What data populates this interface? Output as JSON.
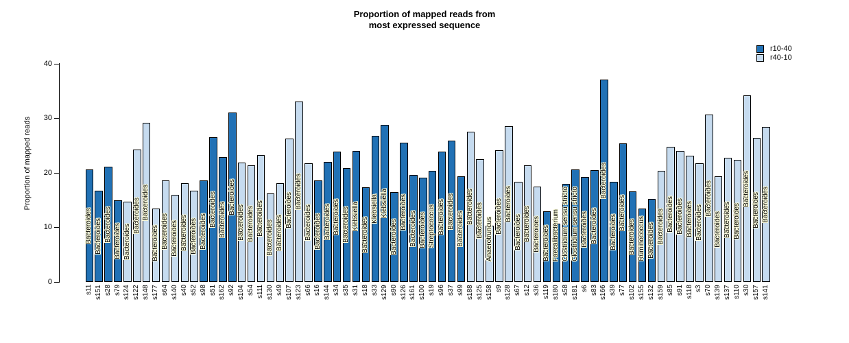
{
  "chart_data": {
    "type": "bar",
    "title": "Proportion of mapped reads from most expressed sequence",
    "title_lines": [
      "Proportion of mapped reads from",
      "most expressed sequence"
    ],
    "ylabel": "Proportion of mapped reads",
    "xlabel": "",
    "ylim": [
      0,
      40
    ],
    "yticks": [
      0,
      10,
      20,
      30,
      40
    ],
    "grid": false,
    "bar_outline": "#000000",
    "label_halo": "#FFFFDE",
    "legend": {
      "position": "top-right",
      "entries": [
        {
          "label": "r10-40",
          "color": "#2171B5"
        },
        {
          "label": "r40-10",
          "color": "#C6DBEF"
        }
      ]
    },
    "bars": [
      {
        "sample": "s11",
        "genus": "Bacteroides",
        "value": 20.6,
        "group": "r10-40"
      },
      {
        "sample": "s151",
        "genus": "Bacteroides",
        "value": 16.7,
        "group": "r10-40"
      },
      {
        "sample": "s28",
        "genus": "Bacteroides",
        "value": 21.1,
        "group": "r10-40"
      },
      {
        "sample": "s79",
        "genus": "Bacteroides",
        "value": 15.0,
        "group": "r10-40"
      },
      {
        "sample": "s124",
        "genus": "Bacteroides",
        "value": 14.7,
        "group": "r40-10"
      },
      {
        "sample": "s122",
        "genus": "Bacteroides",
        "value": 24.3,
        "group": "r40-10"
      },
      {
        "sample": "s148",
        "genus": "Bacteroides",
        "value": 29.1,
        "group": "r40-10"
      },
      {
        "sample": "s177",
        "genus": "Bacteroides",
        "value": 13.4,
        "group": "r40-10"
      },
      {
        "sample": "s64",
        "genus": "Bacteroides",
        "value": 18.6,
        "group": "r40-10"
      },
      {
        "sample": "s140",
        "genus": "Bacteroides",
        "value": 15.9,
        "group": "r40-10"
      },
      {
        "sample": "s40",
        "genus": "Bacteroides",
        "value": 18.1,
        "group": "r40-10"
      },
      {
        "sample": "s52",
        "genus": "Bacteroides",
        "value": 16.7,
        "group": "r40-10"
      },
      {
        "sample": "s98",
        "genus": "Bacteroides",
        "value": 18.6,
        "group": "r10-40"
      },
      {
        "sample": "s51",
        "genus": "Bacteroides",
        "value": 26.5,
        "group": "r10-40"
      },
      {
        "sample": "s162",
        "genus": "Bacteroides",
        "value": 22.9,
        "group": "r10-40"
      },
      {
        "sample": "s92",
        "genus": "Bacteroides",
        "value": 31.0,
        "group": "r10-40"
      },
      {
        "sample": "s104",
        "genus": "Bacteroides",
        "value": 21.9,
        "group": "r40-10"
      },
      {
        "sample": "s54",
        "genus": "Bacteroides",
        "value": 21.3,
        "group": "r40-10"
      },
      {
        "sample": "s111",
        "genus": "Bacteroides",
        "value": 23.2,
        "group": "r40-10"
      },
      {
        "sample": "s130",
        "genus": "Bacteroides",
        "value": 16.2,
        "group": "r40-10"
      },
      {
        "sample": "s49",
        "genus": "Bacteroides",
        "value": 18.1,
        "group": "r40-10"
      },
      {
        "sample": "s107",
        "genus": "Bacteroides",
        "value": 26.2,
        "group": "r40-10"
      },
      {
        "sample": "s123",
        "genus": "Bacteroides",
        "value": 33.0,
        "group": "r40-10"
      },
      {
        "sample": "s66",
        "genus": "Bacteroides",
        "value": 21.7,
        "group": "r40-10"
      },
      {
        "sample": "s16",
        "genus": "Bacteroides",
        "value": 18.6,
        "group": "r10-40"
      },
      {
        "sample": "s144",
        "genus": "Bacteroides",
        "value": 22.0,
        "group": "r10-40"
      },
      {
        "sample": "s34",
        "genus": "Bacteroides",
        "value": 23.8,
        "group": "r10-40"
      },
      {
        "sample": "s35",
        "genus": "Bacteroides",
        "value": 20.9,
        "group": "r10-40"
      },
      {
        "sample": "s31",
        "genus": "Klebsiella",
        "value": 24.0,
        "group": "r10-40"
      },
      {
        "sample": "s18",
        "genus": "Bacteroides",
        "value": 17.3,
        "group": "r10-40"
      },
      {
        "sample": "s33",
        "genus": "Klebsiella",
        "value": 26.7,
        "group": "r10-40"
      },
      {
        "sample": "s129",
        "genus": "Klebsiella",
        "value": 28.7,
        "group": "r10-40"
      },
      {
        "sample": "s90",
        "genus": "Bacteroides",
        "value": 16.5,
        "group": "r10-40"
      },
      {
        "sample": "s126",
        "genus": "Bacteroides",
        "value": 25.5,
        "group": "r10-40"
      },
      {
        "sample": "s161",
        "genus": "Bacteroides",
        "value": 19.6,
        "group": "r10-40"
      },
      {
        "sample": "s100",
        "genus": "Bacteroides",
        "value": 19.1,
        "group": "r10-40"
      },
      {
        "sample": "s19",
        "genus": "Streptococcus",
        "value": 20.3,
        "group": "r10-40"
      },
      {
        "sample": "s96",
        "genus": "Bacteroides",
        "value": 23.9,
        "group": "r10-40"
      },
      {
        "sample": "s37",
        "genus": "Bacteroides",
        "value": 25.9,
        "group": "r10-40"
      },
      {
        "sample": "s99",
        "genus": "Bacteroides",
        "value": 19.4,
        "group": "r10-40"
      },
      {
        "sample": "s188",
        "genus": "Bacteroides",
        "value": 27.5,
        "group": "r40-10"
      },
      {
        "sample": "s125",
        "genus": "Bacteroides",
        "value": 22.5,
        "group": "r40-10"
      },
      {
        "sample": "s158",
        "genus": "Anaerotruncus",
        "value": 10.3,
        "group": "r40-10"
      },
      {
        "sample": "s9",
        "genus": "Bacteroides",
        "value": 24.1,
        "group": "r40-10"
      },
      {
        "sample": "s128",
        "genus": "Bacteroides",
        "value": 28.5,
        "group": "r40-10"
      },
      {
        "sample": "s67",
        "genus": "Bacteroides",
        "value": 18.3,
        "group": "r40-10"
      },
      {
        "sample": "s12",
        "genus": "Bacteroides",
        "value": 21.3,
        "group": "r40-10"
      },
      {
        "sample": "s36",
        "genus": "Bacteroides",
        "value": 17.4,
        "group": "r40-10"
      },
      {
        "sample": "s119",
        "genus": "Bacteroides",
        "value": 12.9,
        "group": "r10-40"
      },
      {
        "sample": "s180",
        "genus": "Faecalibacterium",
        "value": 10.7,
        "group": "r10-40"
      },
      {
        "sample": "s58",
        "genus": "Clostridium sensu stricto",
        "value": 17.9,
        "group": "r10-40"
      },
      {
        "sample": "s181",
        "genus": "Clostridium sensu stricto",
        "value": 20.6,
        "group": "r10-40"
      },
      {
        "sample": "s6",
        "genus": "Bacteroides",
        "value": 19.2,
        "group": "r10-40"
      },
      {
        "sample": "s83",
        "genus": "Bacteroides",
        "value": 20.5,
        "group": "r10-40"
      },
      {
        "sample": "s166",
        "genus": "Bacteroides",
        "value": 37.0,
        "group": "r10-40"
      },
      {
        "sample": "s39",
        "genus": "Bacteroides",
        "value": 18.3,
        "group": "r10-40"
      },
      {
        "sample": "s77",
        "genus": "Bacteroides",
        "value": 25.4,
        "group": "r10-40"
      },
      {
        "sample": "s102",
        "genus": "Bacteroides",
        "value": 16.6,
        "group": "r10-40"
      },
      {
        "sample": "s155",
        "genus": "Ruminococcus",
        "value": 13.5,
        "group": "r10-40"
      },
      {
        "sample": "s132",
        "genus": "Bacteroides",
        "value": 15.2,
        "group": "r10-40"
      },
      {
        "sample": "s159",
        "genus": "Bacteroides",
        "value": 20.3,
        "group": "r40-10"
      },
      {
        "sample": "s85",
        "genus": "Bacteroides",
        "value": 24.8,
        "group": "r40-10"
      },
      {
        "sample": "s91",
        "genus": "Bacteroides",
        "value": 24.0,
        "group": "r40-10"
      },
      {
        "sample": "s118",
        "genus": "Bacteroides",
        "value": 23.1,
        "group": "r40-10"
      },
      {
        "sample": "s3",
        "genus": "Bacteroides",
        "value": 21.7,
        "group": "r40-10"
      },
      {
        "sample": "s70",
        "genus": "Bacteroides",
        "value": 30.6,
        "group": "r40-10"
      },
      {
        "sample": "s139",
        "genus": "Bacteroides",
        "value": 19.3,
        "group": "r40-10"
      },
      {
        "sample": "s137",
        "genus": "Bacteroides",
        "value": 22.7,
        "group": "r40-10"
      },
      {
        "sample": "s110",
        "genus": "Bacteroides",
        "value": 22.3,
        "group": "r40-10"
      },
      {
        "sample": "s30",
        "genus": "Bacteroides",
        "value": 34.1,
        "group": "r40-10"
      },
      {
        "sample": "s157",
        "genus": "Bacteroides",
        "value": 26.4,
        "group": "r40-10"
      },
      {
        "sample": "s141",
        "genus": "Bacteroides",
        "value": 28.4,
        "group": "r40-10"
      }
    ]
  }
}
